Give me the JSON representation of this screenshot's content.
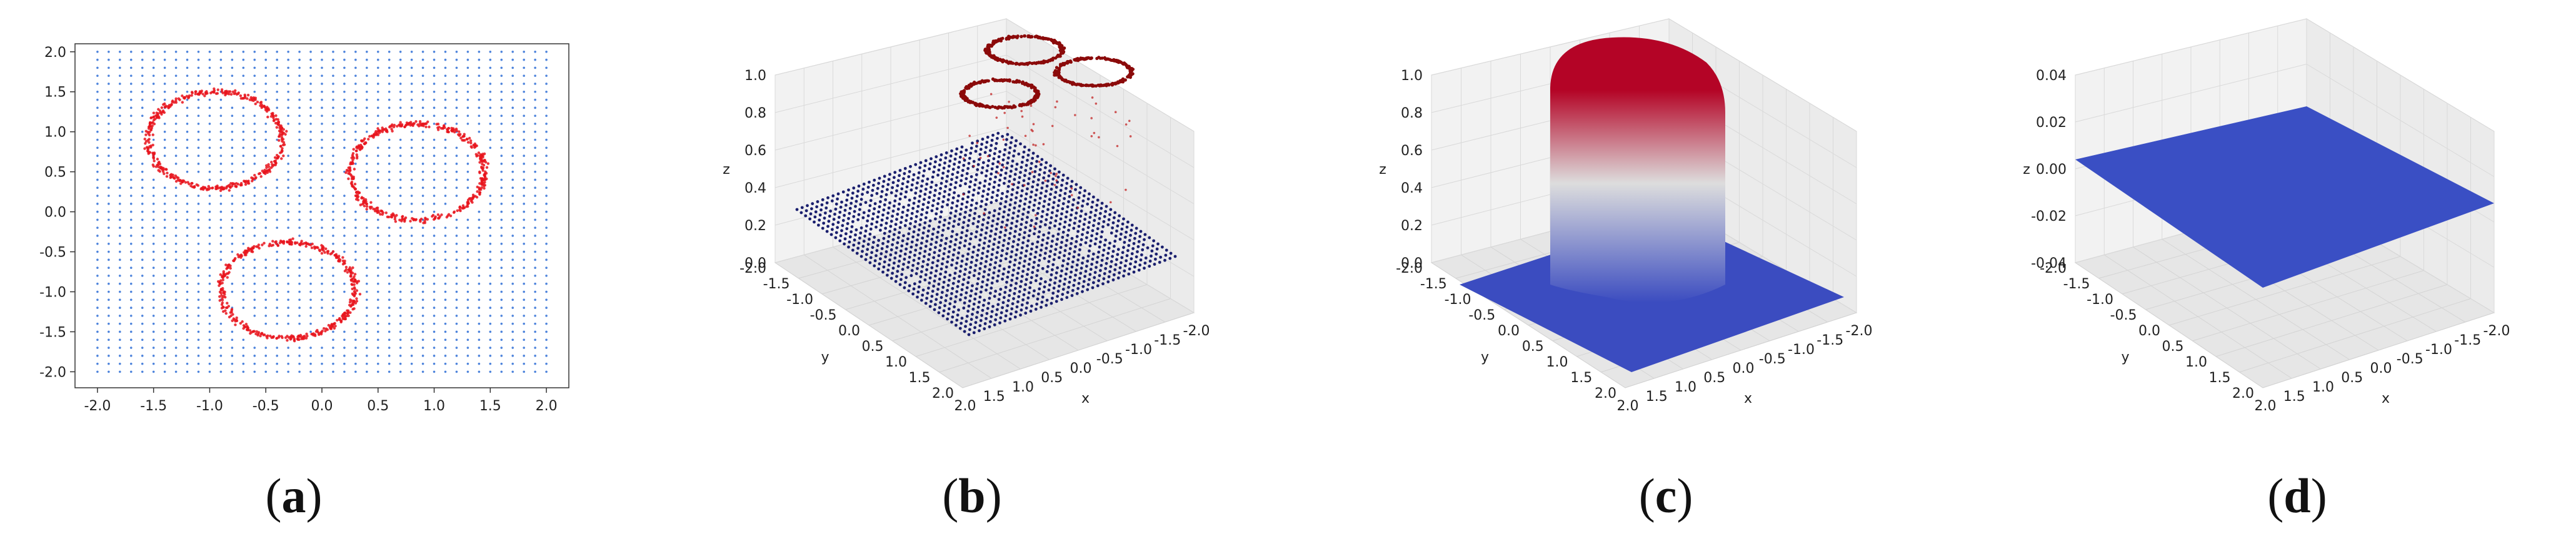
{
  "chart_data": [
    {
      "type": "scatter",
      "panel_label": "a",
      "xlim": [
        -2.2,
        2.2
      ],
      "ylim": [
        -2.2,
        2.1
      ],
      "xticks": [
        "-2.0",
        "-1.5",
        "-1.0",
        "-0.5",
        "0.0",
        "0.5",
        "1.0",
        "1.5",
        "2.0"
      ],
      "yticks": [
        "2.0",
        "1.5",
        "1.0",
        "0.5",
        "0.0",
        "-0.5",
        "-1.0",
        "-1.5",
        "-2.0"
      ],
      "series": [
        {
          "kind": "grid",
          "color": "#2f6fd6",
          "range": [
            -2.0,
            2.0
          ],
          "step": 0.1
        },
        {
          "kind": "rings",
          "color": "#e8141c",
          "circles": [
            {
              "cx": -0.95,
              "cy": 0.9,
              "r": 0.6
            },
            {
              "cx": 0.85,
              "cy": 0.5,
              "r": 0.6
            },
            {
              "cx": -0.3,
              "cy": -0.98,
              "r": 0.6
            }
          ]
        }
      ]
    },
    {
      "type": "scatter3d",
      "panel_label": "b",
      "zticks": [
        "1.0",
        "0.8",
        "0.6",
        "0.4",
        "0.2",
        "0.0"
      ],
      "yticks": [
        "-2.0",
        "-1.5",
        "-1.0",
        "-0.5",
        "0.0",
        "0.5",
        "1.0",
        "1.5",
        "2.0"
      ],
      "xticks": [
        "2.0",
        "1.5",
        "1.0",
        "0.5",
        "0.0",
        "-0.5",
        "-1.0",
        "-1.5",
        "-2.0"
      ],
      "xlabel": "x",
      "ylabel": "y",
      "zlabel": "z",
      "floor_color": "#1a1f6e",
      "ring_color": "#8b0a0a",
      "z_floor": 0.0,
      "z_rings": 1.0
    },
    {
      "type": "surface3d",
      "panel_label": "c",
      "zticks": [
        "1.0",
        "0.8",
        "0.6",
        "0.4",
        "0.2",
        "0.0"
      ],
      "yticks": [
        "-2.0",
        "-1.5",
        "-1.0",
        "-0.5",
        "0.0",
        "0.5",
        "1.0",
        "1.5",
        "2.0"
      ],
      "xticks": [
        "2.0",
        "1.5",
        "1.0",
        "0.5",
        "0.0",
        "-0.5",
        "-1.0",
        "-1.5",
        "-2.0"
      ],
      "xlabel": "x",
      "ylabel": "y",
      "zlabel": "z",
      "colormap": [
        "#3b4cc0",
        "#dddddd",
        "#b40426"
      ]
    },
    {
      "type": "surface3d",
      "panel_label": "d",
      "zticks": [
        "0.04",
        "0.02",
        "0.00",
        "-0.02",
        "-0.04"
      ],
      "yticks": [
        "-2.0",
        "-1.5",
        "-1.0",
        "-0.5",
        "0.0",
        "0.5",
        "1.0",
        "1.5",
        "2.0"
      ],
      "xticks": [
        "2.0",
        "1.5",
        "1.0",
        "0.5",
        "0.0",
        "-0.5",
        "-1.0",
        "-1.5",
        "-2.0"
      ],
      "xlabel": "x",
      "ylabel": "y",
      "zlabel": "z",
      "surface_color": "#3a4fc4",
      "z_value": 0.0
    }
  ],
  "captions": {
    "a": {
      "open": "(",
      "letter": "a",
      "close": ")"
    },
    "b": {
      "open": "(",
      "letter": "b",
      "close": ")"
    },
    "c": {
      "open": "(",
      "letter": "c",
      "close": ")"
    },
    "d": {
      "open": "(",
      "letter": "d",
      "close": ")"
    }
  }
}
